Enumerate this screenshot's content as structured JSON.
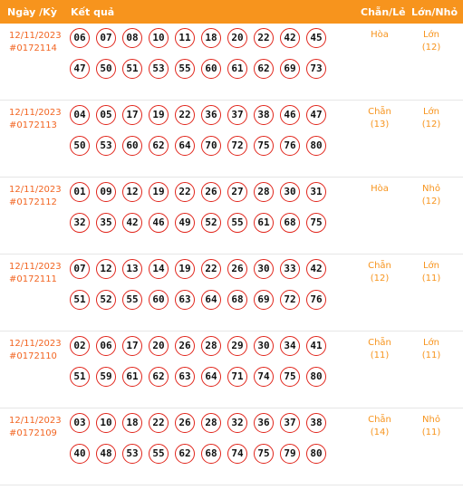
{
  "header": {
    "date_col": "Ngày /Kỳ",
    "result_col": "Kết quả",
    "chanle_col": "Chẵn/Lẻ",
    "lonnho_col": "Lớn/Nhỏ"
  },
  "rows": [
    {
      "date": "12/11/2023",
      "code": "#0172114",
      "numbers": [
        "06",
        "07",
        "08",
        "10",
        "11",
        "18",
        "20",
        "22",
        "42",
        "45",
        "47",
        "50",
        "51",
        "53",
        "55",
        "60",
        "61",
        "62",
        "69",
        "73"
      ],
      "chanle": "Hòa",
      "chanle_count": "",
      "lonnho": "Lớn",
      "lonnho_count": "(12)"
    },
    {
      "date": "12/11/2023",
      "code": "#0172113",
      "numbers": [
        "04",
        "05",
        "17",
        "19",
        "22",
        "36",
        "37",
        "38",
        "46",
        "47",
        "50",
        "53",
        "60",
        "62",
        "64",
        "70",
        "72",
        "75",
        "76",
        "80"
      ],
      "chanle": "Chẵn",
      "chanle_count": "(13)",
      "lonnho": "Lớn",
      "lonnho_count": "(12)"
    },
    {
      "date": "12/11/2023",
      "code": "#0172112",
      "numbers": [
        "01",
        "09",
        "12",
        "19",
        "22",
        "26",
        "27",
        "28",
        "30",
        "31",
        "32",
        "35",
        "42",
        "46",
        "49",
        "52",
        "55",
        "61",
        "68",
        "75"
      ],
      "chanle": "Hòa",
      "chanle_count": "",
      "lonnho": "Nhỏ",
      "lonnho_count": "(12)"
    },
    {
      "date": "12/11/2023",
      "code": "#0172111",
      "numbers": [
        "07",
        "12",
        "13",
        "14",
        "19",
        "22",
        "26",
        "30",
        "33",
        "42",
        "51",
        "52",
        "55",
        "60",
        "63",
        "64",
        "68",
        "69",
        "72",
        "76"
      ],
      "chanle": "Chẵn",
      "chanle_count": "(12)",
      "lonnho": "Lớn",
      "lonnho_count": "(11)"
    },
    {
      "date": "12/11/2023",
      "code": "#0172110",
      "numbers": [
        "02",
        "06",
        "17",
        "20",
        "26",
        "28",
        "29",
        "30",
        "34",
        "41",
        "51",
        "59",
        "61",
        "62",
        "63",
        "64",
        "71",
        "74",
        "75",
        "80"
      ],
      "chanle": "Chẵn",
      "chanle_count": "(11)",
      "lonnho": "Lớn",
      "lonnho_count": "(11)"
    },
    {
      "date": "12/11/2023",
      "code": "#0172109",
      "numbers": [
        "03",
        "10",
        "18",
        "22",
        "26",
        "28",
        "32",
        "36",
        "37",
        "38",
        "40",
        "48",
        "53",
        "55",
        "62",
        "68",
        "74",
        "75",
        "79",
        "80"
      ],
      "chanle": "Chẵn",
      "chanle_count": "(14)",
      "lonnho": "Nhỏ",
      "lonnho_count": "(11)"
    }
  ]
}
